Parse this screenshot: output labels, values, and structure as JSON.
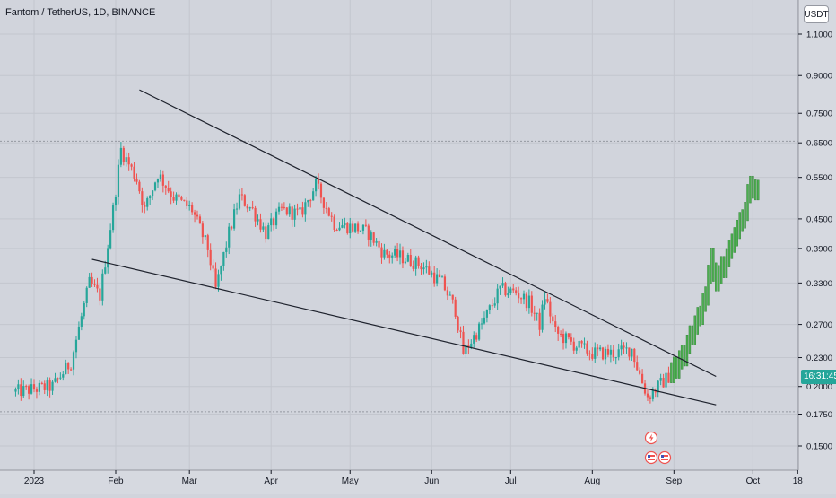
{
  "chart_title": {
    "name": "Fantom / TetherUS",
    "interval": "1D",
    "exchange": "BINANCE"
  },
  "currency_button": "USDT",
  "last_price_tag": "16:31:45",
  "colors": {
    "background": "#d1d4dc",
    "up": "#26a69a",
    "down": "#ef5350",
    "projection": "#4caf50",
    "trendline": "#1e222d",
    "dashed": "#9598a1"
  },
  "icons": [
    "lightning-icon",
    "flag-icon",
    "flag-icon"
  ],
  "chart_data": {
    "type": "candlestick",
    "title": "Fantom / TetherUS, 1D, BINANCE",
    "xlabel": "",
    "ylabel": "",
    "y_scale": "log",
    "x_range": [
      "2023-01-01",
      "2023-10-24"
    ],
    "y_ticks": [
      1.1,
      0.9,
      0.75,
      0.65,
      0.55,
      0.45,
      0.39,
      0.33,
      0.27,
      0.23,
      0.2,
      0.175,
      0.15
    ],
    "y_tick_labels": [
      "1.1000",
      "0.9000",
      "0.7500",
      "0.6500",
      "0.5500",
      "0.4500",
      "0.3900",
      "0.3300",
      "0.2700",
      "0.2300",
      "0.2000",
      "0.1750",
      "0.1500"
    ],
    "x_ticks": [
      {
        "label": "2023",
        "date": "2023-01-01"
      },
      {
        "label": "Feb",
        "date": "2023-02-01"
      },
      {
        "label": "Mar",
        "date": "2023-03-01"
      },
      {
        "label": "Apr",
        "date": "2023-04-01"
      },
      {
        "label": "May",
        "date": "2023-05-01"
      },
      {
        "label": "Jun",
        "date": "2023-06-01"
      },
      {
        "label": "Jul",
        "date": "2023-07-01"
      },
      {
        "label": "Aug",
        "date": "2023-08-01"
      },
      {
        "label": "Sep",
        "date": "2023-09-01"
      },
      {
        "label": "Oct",
        "date": "2023-10-01"
      },
      {
        "label": "18",
        "date": "2023-10-18"
      }
    ],
    "horizontal_lines": [
      0.655,
      0.177
    ],
    "grid": true,
    "close_path": [
      [
        "2022-12-25",
        0.195
      ],
      [
        "2023-01-08",
        0.2
      ],
      [
        "2023-01-15",
        0.225
      ],
      [
        "2023-01-22",
        0.33
      ],
      [
        "2023-01-26",
        0.31
      ],
      [
        "2023-01-31",
        0.47
      ],
      [
        "2023-02-03",
        0.63
      ],
      [
        "2023-02-09",
        0.545
      ],
      [
        "2023-02-12",
        0.47
      ],
      [
        "2023-02-17",
        0.56
      ],
      [
        "2023-02-23",
        0.5
      ],
      [
        "2023-03-02",
        0.47
      ],
      [
        "2023-03-08",
        0.39
      ],
      [
        "2023-03-11",
        0.32
      ],
      [
        "2023-03-16",
        0.42
      ],
      [
        "2023-03-20",
        0.5
      ],
      [
        "2023-03-25",
        0.47
      ],
      [
        "2023-03-30",
        0.42
      ],
      [
        "2023-04-05",
        0.47
      ],
      [
        "2023-04-12",
        0.46
      ],
      [
        "2023-04-18",
        0.53
      ],
      [
        "2023-04-25",
        0.44
      ],
      [
        "2023-05-04",
        0.43
      ],
      [
        "2023-05-08",
        0.42
      ],
      [
        "2023-05-14",
        0.38
      ],
      [
        "2023-05-20",
        0.375
      ],
      [
        "2023-05-28",
        0.36
      ],
      [
        "2023-06-05",
        0.33
      ],
      [
        "2023-06-10",
        0.29
      ],
      [
        "2023-06-13",
        0.235
      ],
      [
        "2023-06-20",
        0.27
      ],
      [
        "2023-06-27",
        0.32
      ],
      [
        "2023-07-03",
        0.315
      ],
      [
        "2023-07-08",
        0.3
      ],
      [
        "2023-07-12",
        0.27
      ],
      [
        "2023-07-14",
        0.31
      ],
      [
        "2023-07-18",
        0.26
      ],
      [
        "2023-07-25",
        0.245
      ],
      [
        "2023-08-01",
        0.235
      ],
      [
        "2023-08-10",
        0.235
      ],
      [
        "2023-08-16",
        0.24
      ],
      [
        "2023-08-18",
        0.22
      ],
      [
        "2023-08-22",
        0.19
      ],
      [
        "2023-08-26",
        0.2
      ],
      [
        "2023-08-30",
        0.21
      ]
    ],
    "projection_path": [
      [
        "2023-08-31",
        0.215
      ],
      [
        "2023-09-05",
        0.235
      ],
      [
        "2023-09-09",
        0.27
      ],
      [
        "2023-09-13",
        0.31
      ],
      [
        "2023-09-15",
        0.37
      ],
      [
        "2023-09-17",
        0.34
      ],
      [
        "2023-09-20",
        0.36
      ],
      [
        "2023-09-24",
        0.41
      ],
      [
        "2023-09-27",
        0.45
      ],
      [
        "2023-09-30",
        0.54
      ],
      [
        "2023-10-03",
        0.52
      ]
    ],
    "trendlines": [
      {
        "name": "upper",
        "start": [
          "2023-02-10",
          0.84
        ],
        "end": [
          "2023-09-17",
          0.21
        ]
      },
      {
        "name": "lower",
        "start": [
          "2023-01-23",
          0.37
        ],
        "end": [
          "2023-09-17",
          0.183
        ]
      }
    ]
  }
}
